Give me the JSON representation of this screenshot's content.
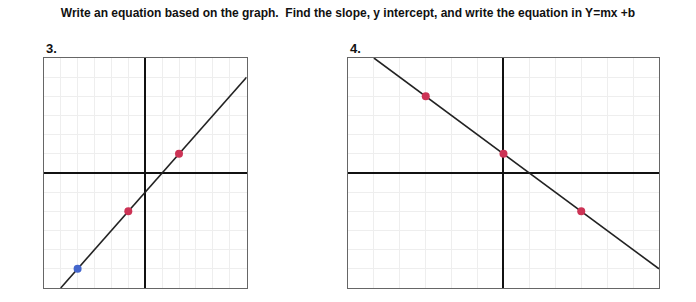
{
  "chart_data": [
    {
      "type": "scatter",
      "title": "Write an equation based on the graph.  Find the slope, y intercept, and write the equation in Y=mx +b",
      "subtitle": "3.",
      "xlim": [
        -6,
        6
      ],
      "ylim": [
        -6,
        6
      ],
      "xticks": [
        -6,
        -5,
        -4,
        -3,
        -2,
        -1,
        0,
        1,
        2,
        3,
        4,
        5,
        6
      ],
      "yticks": [
        -6,
        -5,
        -4,
        -3,
        -2,
        -1,
        0,
        1,
        2,
        3,
        4,
        5,
        6
      ],
      "grid": true,
      "tick_labels": false,
      "series": [
        {
          "type": "line",
          "color": "#222222",
          "x": [
            -5,
            6
          ],
          "values": [
            -6,
            5
          ]
        },
        {
          "type": "scatter",
          "x": [
            -4,
            -1,
            2
          ],
          "values": [
            -5,
            -2,
            1
          ],
          "colors": [
            "#4466cc",
            "#cc3355",
            "#cc3355"
          ]
        }
      ]
    },
    {
      "type": "scatter",
      "subtitle": "4.",
      "xlim": [
        -6,
        6
      ],
      "ylim": [
        -6,
        6
      ],
      "xticks": [
        -6,
        -5,
        -4,
        -3,
        -2,
        -1,
        0,
        1,
        2,
        3,
        4,
        5,
        6
      ],
      "yticks": [
        -6,
        -5,
        -4,
        -3,
        -2,
        -1,
        0,
        1,
        2,
        3,
        4,
        5,
        6
      ],
      "grid": true,
      "tick_labels": false,
      "series": [
        {
          "type": "line",
          "color": "#222222",
          "x": [
            -5,
            6
          ],
          "values": [
            6,
            -5
          ]
        },
        {
          "type": "scatter",
          "x": [
            -3,
            0,
            3
          ],
          "values": [
            4,
            1,
            -2
          ],
          "colors": [
            "#cc3355",
            "#cc3355",
            "#cc3355"
          ]
        }
      ]
    }
  ]
}
